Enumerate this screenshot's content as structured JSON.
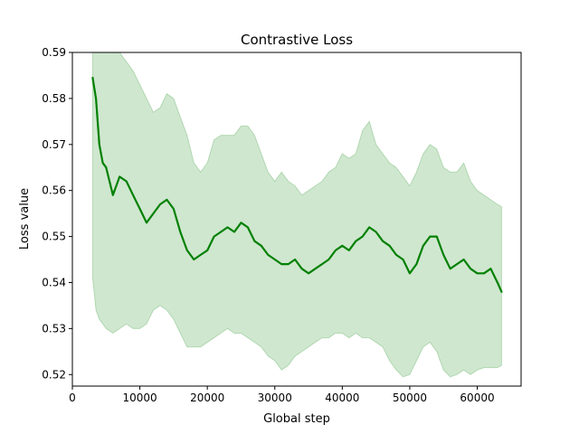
{
  "chart_data": {
    "type": "line",
    "title": "Contrastive Loss",
    "xlabel": "Global step",
    "ylabel": "Loss value",
    "xlim": [
      0,
      66500
    ],
    "ylim": [
      0.5175,
      0.59
    ],
    "xticks": [
      0,
      10000,
      20000,
      30000,
      40000,
      50000,
      60000
    ],
    "xtick_labels": [
      "0",
      "10000",
      "20000",
      "30000",
      "40000",
      "50000",
      "60000"
    ],
    "yticks": [
      0.52,
      0.53,
      0.54,
      0.55,
      0.56,
      0.57,
      0.58,
      0.59
    ],
    "ytick_labels": [
      "0.52",
      "0.53",
      "0.54",
      "0.55",
      "0.56",
      "0.57",
      "0.58",
      "0.59"
    ],
    "grid": false,
    "series": [
      {
        "color": "#008000",
        "band_color": "#008000",
        "x": [
          3000,
          3500,
          4000,
          4500,
          5000,
          6000,
          7000,
          8000,
          9000,
          10000,
          11000,
          12000,
          13000,
          14000,
          15000,
          16000,
          17000,
          18000,
          19000,
          20000,
          21000,
          22000,
          23000,
          24000,
          25000,
          26000,
          27000,
          28000,
          29000,
          30000,
          31000,
          32000,
          33000,
          34000,
          35000,
          36000,
          37000,
          38000,
          39000,
          40000,
          41000,
          42000,
          43000,
          44000,
          45000,
          46000,
          47000,
          48000,
          49000,
          50000,
          51000,
          52000,
          53000,
          54000,
          55000,
          56000,
          57000,
          58000,
          59000,
          60000,
          61000,
          62000,
          63000,
          63600
        ],
        "y": [
          0.5845,
          0.58,
          0.57,
          0.566,
          0.565,
          0.559,
          0.563,
          0.562,
          0.559,
          0.556,
          0.553,
          0.555,
          0.557,
          0.558,
          0.556,
          0.551,
          0.547,
          0.545,
          0.546,
          0.547,
          0.55,
          0.551,
          0.552,
          0.551,
          0.553,
          0.552,
          0.549,
          0.548,
          0.546,
          0.545,
          0.544,
          0.544,
          0.545,
          0.543,
          0.542,
          0.543,
          0.544,
          0.545,
          0.547,
          0.548,
          0.547,
          0.549,
          0.55,
          0.552,
          0.551,
          0.549,
          0.548,
          0.546,
          0.545,
          0.542,
          0.544,
          0.548,
          0.55,
          0.55,
          0.546,
          0.543,
          0.544,
          0.545,
          0.543,
          0.542,
          0.542,
          0.543,
          0.54,
          0.538
        ],
        "lower": [
          0.541,
          0.534,
          0.532,
          0.531,
          0.53,
          0.529,
          0.53,
          0.531,
          0.53,
          0.53,
          0.531,
          0.534,
          0.535,
          0.534,
          0.532,
          0.529,
          0.526,
          0.526,
          0.526,
          0.527,
          0.528,
          0.529,
          0.53,
          0.529,
          0.529,
          0.528,
          0.527,
          0.526,
          0.524,
          0.523,
          0.521,
          0.522,
          0.524,
          0.525,
          0.526,
          0.527,
          0.528,
          0.528,
          0.529,
          0.529,
          0.528,
          0.529,
          0.528,
          0.528,
          0.527,
          0.526,
          0.523,
          0.521,
          0.5195,
          0.52,
          0.523,
          0.526,
          0.527,
          0.525,
          0.521,
          0.5195,
          0.52,
          0.521,
          0.52,
          0.521,
          0.5215,
          0.5215,
          0.5215,
          0.522
        ],
        "upper": [
          0.59,
          0.59,
          0.59,
          0.59,
          0.59,
          0.59,
          0.59,
          0.588,
          0.586,
          0.583,
          0.58,
          0.577,
          0.578,
          0.581,
          0.58,
          0.576,
          0.572,
          0.566,
          0.564,
          0.566,
          0.571,
          0.572,
          0.572,
          0.572,
          0.574,
          0.574,
          0.572,
          0.568,
          0.564,
          0.562,
          0.564,
          0.562,
          0.561,
          0.559,
          0.56,
          0.561,
          0.562,
          0.564,
          0.565,
          0.568,
          0.567,
          0.568,
          0.573,
          0.575,
          0.57,
          0.568,
          0.566,
          0.565,
          0.563,
          0.561,
          0.564,
          0.568,
          0.57,
          0.569,
          0.565,
          0.564,
          0.564,
          0.566,
          0.562,
          0.56,
          0.559,
          0.558,
          0.557,
          0.5565
        ]
      }
    ]
  }
}
